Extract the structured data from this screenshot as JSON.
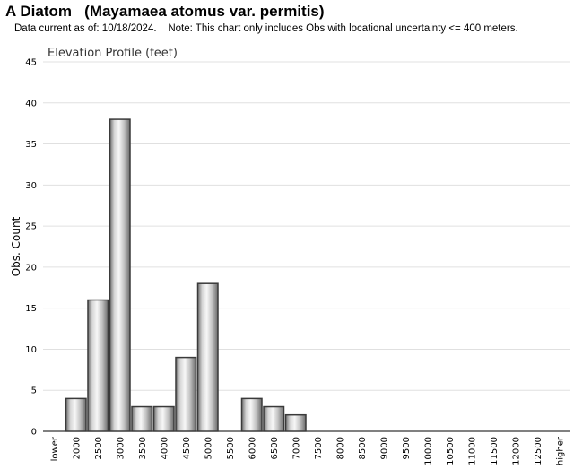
{
  "header": {
    "title": "A Diatom   (Mayamaea atomus var. permitis)",
    "note": "Data current as of: 10/18/2024.    Note: This chart only includes Obs with locational uncertainty <= 400 meters."
  },
  "chart_data": {
    "type": "bar",
    "title": "Elevation Profile (feet)",
    "xlabel": "",
    "ylabel": "Obs. Count",
    "ylim": [
      0,
      45
    ],
    "yticks": [
      0,
      5,
      10,
      15,
      20,
      25,
      30,
      35,
      40,
      45
    ],
    "grid": true,
    "categories": [
      "lower",
      "2000",
      "2500",
      "3000",
      "3500",
      "4000",
      "4500",
      "5000",
      "5500",
      "6000",
      "6500",
      "7000",
      "7500",
      "8000",
      "8500",
      "9000",
      "9500",
      "10000",
      "10500",
      "11000",
      "11500",
      "12000",
      "12500",
      "higher"
    ],
    "values": [
      0,
      4,
      16,
      38,
      3,
      3,
      9,
      18,
      0,
      4,
      3,
      2,
      0,
      0,
      0,
      0,
      0,
      0,
      0,
      0,
      0,
      0,
      0,
      0
    ],
    "bar_color": "#bdbdbd",
    "bar_edge_color": "#3a3a3a"
  }
}
